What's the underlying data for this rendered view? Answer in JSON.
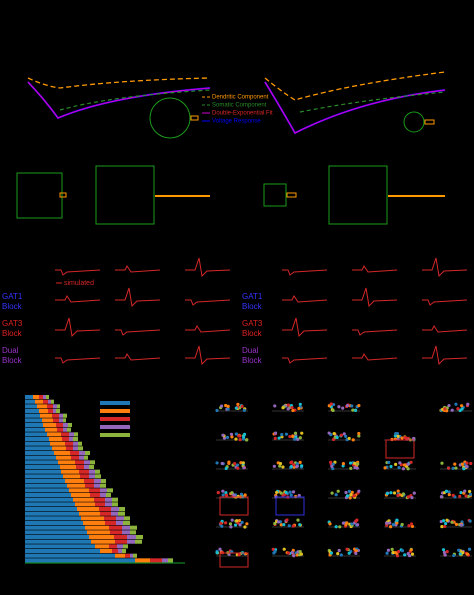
{
  "panel_a": {
    "legend": [
      "Dendritic Component",
      "Somatic Component",
      "Double-Exponential Fit",
      "Voltage Response"
    ]
  },
  "panel_c": {
    "simulated": "simulated",
    "rows_left": [
      "GAT1\nBlock",
      "GAT3\nBlock",
      "Dual\nBlock"
    ],
    "rows_right": [
      "GAT1\nBlock",
      "GAT3\nBlock",
      "Dual\nBlock"
    ]
  },
  "panel_d": {
    "series": [
      {
        "color": "#1f77b4",
        "values": [
          8,
          10,
          12,
          14,
          15,
          17,
          18,
          20,
          22,
          24,
          25,
          27,
          29,
          31,
          33,
          35,
          36,
          38,
          40,
          42,
          44,
          46,
          48,
          50,
          52,
          54,
          56,
          58,
          60,
          62,
          64,
          66,
          70,
          75,
          90,
          110
        ]
      },
      {
        "color": "#ff7f0e",
        "values": [
          6,
          8,
          10,
          9,
          12,
          11,
          13,
          12,
          14,
          13,
          15,
          14,
          16,
          15,
          17,
          16,
          18,
          17,
          19,
          18,
          20,
          19,
          21,
          20,
          22,
          21,
          23,
          22,
          24,
          23,
          25,
          24,
          14,
          12,
          10,
          15
        ]
      },
      {
        "color": "#d62728",
        "values": [
          4,
          5,
          6,
          5,
          7,
          6,
          7,
          6,
          8,
          7,
          8,
          7,
          9,
          8,
          9,
          8,
          10,
          9,
          10,
          9,
          11,
          10,
          11,
          10,
          12,
          11,
          12,
          11,
          13,
          12,
          13,
          12,
          8,
          6,
          5,
          12
        ]
      },
      {
        "color": "#9467bd",
        "values": [
          3,
          3,
          4,
          3,
          4,
          4,
          5,
          4,
          5,
          4,
          5,
          5,
          6,
          5,
          6,
          5,
          6,
          6,
          7,
          6,
          7,
          6,
          7,
          7,
          8,
          7,
          8,
          7,
          8,
          8,
          9,
          8,
          6,
          4,
          3,
          6
        ]
      },
      {
        "color": "#8cb33c",
        "values": [
          3,
          3,
          3,
          4,
          4,
          3,
          4,
          4,
          4,
          5,
          4,
          5,
          5,
          4,
          5,
          5,
          5,
          6,
          5,
          6,
          6,
          5,
          6,
          6,
          6,
          7,
          6,
          7,
          7,
          6,
          7,
          7,
          5,
          4,
          4,
          5
        ]
      }
    ]
  }
}
